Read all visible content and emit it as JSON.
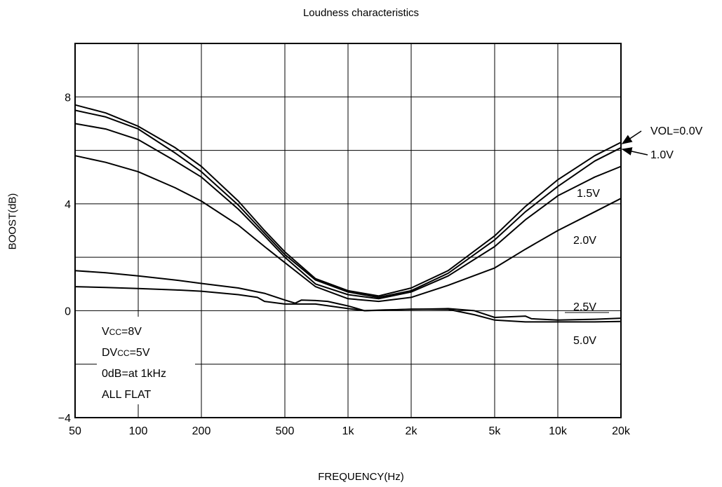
{
  "chart_data": {
    "type": "line",
    "title": "Loudness characteristics",
    "xlabel": "FREQUENCY(Hz)",
    "ylabel": "BOOST(dB)",
    "xscale": "log",
    "xlim": [
      50,
      20000
    ],
    "ylim": [
      -4,
      10
    ],
    "grid": true,
    "x_ticks": [
      {
        "value": 50,
        "label": "50"
      },
      {
        "value": 100,
        "label": "100"
      },
      {
        "value": 200,
        "label": "200"
      },
      {
        "value": 500,
        "label": "500"
      },
      {
        "value": 1000,
        "label": "1k"
      },
      {
        "value": 2000,
        "label": "2k"
      },
      {
        "value": 5000,
        "label": "5k"
      },
      {
        "value": 10000,
        "label": "10k"
      },
      {
        "value": 20000,
        "label": "20k"
      }
    ],
    "y_ticks": [
      {
        "value": -4,
        "label": "−4"
      },
      {
        "value": 0,
        "label": "0"
      },
      {
        "value": 4,
        "label": "4"
      },
      {
        "value": 8,
        "label": "8"
      }
    ],
    "y_gridlines": [
      -2,
      0,
      2,
      4,
      6,
      8
    ],
    "series": [
      {
        "name": "VOL=0.0V",
        "x": [
          50,
          70,
          100,
          150,
          200,
          300,
          400,
          500,
          700,
          1000,
          1400,
          2000,
          3000,
          5000,
          7000,
          10000,
          15000,
          20000
        ],
        "y": [
          7.7,
          7.4,
          6.9,
          6.1,
          5.4,
          4.1,
          3.0,
          2.2,
          1.2,
          0.75,
          0.55,
          0.85,
          1.5,
          2.8,
          3.9,
          4.9,
          5.8,
          6.3
        ]
      },
      {
        "name": "1.0V",
        "x": [
          50,
          70,
          100,
          150,
          200,
          300,
          400,
          500,
          700,
          1000,
          1400,
          2000,
          3000,
          5000,
          7000,
          10000,
          15000,
          20000
        ],
        "y": [
          7.5,
          7.25,
          6.8,
          5.9,
          5.2,
          3.95,
          2.9,
          2.1,
          1.15,
          0.7,
          0.5,
          0.75,
          1.4,
          2.65,
          3.7,
          4.65,
          5.6,
          6.1
        ]
      },
      {
        "name": "1.5V",
        "x": [
          50,
          70,
          100,
          150,
          200,
          300,
          400,
          500,
          700,
          1000,
          1400,
          2000,
          3000,
          5000,
          7000,
          10000,
          15000,
          20000
        ],
        "y": [
          7.0,
          6.8,
          6.4,
          5.6,
          5.0,
          3.8,
          2.8,
          2.0,
          1.0,
          0.6,
          0.45,
          0.7,
          1.3,
          2.4,
          3.4,
          4.3,
          5.0,
          5.4
        ]
      },
      {
        "name": "2.0V",
        "x": [
          50,
          70,
          100,
          150,
          200,
          300,
          400,
          500,
          700,
          1000,
          1400,
          2000,
          3000,
          5000,
          7000,
          10000,
          15000,
          20000
        ],
        "y": [
          5.8,
          5.55,
          5.2,
          4.6,
          4.1,
          3.2,
          2.4,
          1.8,
          0.9,
          0.45,
          0.35,
          0.5,
          0.95,
          1.6,
          2.3,
          3.0,
          3.7,
          4.2
        ]
      },
      {
        "name": "2.5V",
        "x": [
          50,
          70,
          100,
          150,
          200,
          300,
          400,
          500,
          560,
          600,
          700,
          800,
          1000,
          1200,
          1500,
          2000,
          3000,
          4000,
          5000,
          7000,
          7500,
          10000,
          15000,
          20000
        ],
        "y": [
          1.5,
          1.42,
          1.3,
          1.15,
          1.02,
          0.85,
          0.65,
          0.4,
          0.28,
          0.4,
          0.38,
          0.35,
          0.18,
          0.0,
          0.03,
          0.05,
          0.08,
          0.0,
          -0.25,
          -0.2,
          -0.3,
          -0.35,
          -0.32,
          -0.28
        ]
      },
      {
        "name": "5.0V",
        "x": [
          50,
          70,
          100,
          150,
          200,
          300,
          370,
          400,
          500,
          700,
          1000,
          1200,
          1500,
          2000,
          3000,
          4000,
          5000,
          7000,
          10000,
          15000,
          20000
        ],
        "y": [
          0.9,
          0.87,
          0.83,
          0.78,
          0.73,
          0.6,
          0.5,
          0.35,
          0.25,
          0.25,
          0.08,
          0.0,
          0.02,
          0.06,
          0.05,
          -0.15,
          -0.35,
          -0.42,
          -0.42,
          -0.42,
          -0.4
        ]
      }
    ],
    "series_labels": [
      {
        "series": "VOL=0.0V",
        "text": "VOL=0.0V",
        "arrow": true
      },
      {
        "series": "1.0V",
        "text": "1.0V",
        "arrow": true
      },
      {
        "series": "1.5V",
        "text": "1.5V",
        "arrow": false
      },
      {
        "series": "2.0V",
        "text": "2.0V",
        "arrow": false
      },
      {
        "series": "2.5V",
        "text": "2.5V",
        "arrow": false
      },
      {
        "series": "5.0V",
        "text": "5.0V",
        "arrow": false
      }
    ],
    "annotations": [
      {
        "text": "VCC=8V",
        "prefix": "V",
        "sub": "CC",
        "suffix": "=8V"
      },
      {
        "text": "DVCC=5V",
        "prefix": "DV",
        "sub": "CC",
        "suffix": "=5V"
      },
      {
        "text": "0dB=at 1kHz",
        "prefix": "0dB=at 1kHz",
        "sub": "",
        "suffix": ""
      },
      {
        "text": "ALL FLAT",
        "prefix": "ALL FLAT",
        "sub": "",
        "suffix": ""
      }
    ]
  }
}
